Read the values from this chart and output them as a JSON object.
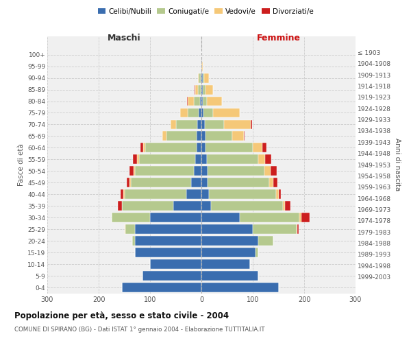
{
  "age_groups": [
    "0-4",
    "5-9",
    "10-14",
    "15-19",
    "20-24",
    "25-29",
    "30-34",
    "35-39",
    "40-44",
    "45-49",
    "50-54",
    "55-59",
    "60-64",
    "65-69",
    "70-74",
    "75-79",
    "80-84",
    "85-89",
    "90-94",
    "95-99",
    "100+"
  ],
  "birth_years": [
    "1999-2003",
    "1994-1998",
    "1989-1993",
    "1984-1988",
    "1979-1983",
    "1974-1978",
    "1969-1973",
    "1964-1968",
    "1959-1963",
    "1954-1958",
    "1949-1953",
    "1944-1948",
    "1939-1943",
    "1934-1938",
    "1929-1933",
    "1924-1928",
    "1919-1923",
    "1914-1918",
    "1909-1913",
    "1904-1908",
    "≤ 1903"
  ],
  "males": {
    "celibi": [
      155,
      115,
      100,
      130,
      130,
      130,
      100,
      55,
      30,
      20,
      15,
      12,
      10,
      10,
      8,
      5,
      3,
      2,
      2,
      0,
      0
    ],
    "coniugati": [
      0,
      0,
      0,
      0,
      5,
      18,
      75,
      100,
      120,
      118,
      115,
      110,
      100,
      58,
      42,
      22,
      12,
      5,
      3,
      0,
      0
    ],
    "vedovi": [
      0,
      0,
      0,
      0,
      0,
      2,
      0,
      0,
      2,
      2,
      2,
      3,
      4,
      8,
      10,
      14,
      12,
      5,
      2,
      0,
      0
    ],
    "divorziati": [
      0,
      0,
      0,
      0,
      0,
      0,
      0,
      8,
      5,
      5,
      8,
      8,
      5,
      0,
      0,
      0,
      1,
      1,
      0,
      0,
      0
    ]
  },
  "females": {
    "nubili": [
      150,
      110,
      95,
      105,
      110,
      100,
      75,
      18,
      15,
      12,
      12,
      10,
      8,
      8,
      6,
      4,
      2,
      3,
      2,
      0,
      0
    ],
    "coniugate": [
      0,
      0,
      0,
      5,
      30,
      85,
      115,
      140,
      130,
      120,
      110,
      100,
      92,
      52,
      38,
      18,
      8,
      5,
      3,
      0,
      0
    ],
    "vedove": [
      0,
      0,
      0,
      0,
      0,
      2,
      5,
      5,
      5,
      8,
      12,
      14,
      18,
      22,
      52,
      52,
      30,
      15,
      10,
      2,
      0
    ],
    "divorziate": [
      0,
      0,
      0,
      0,
      0,
      2,
      15,
      10,
      5,
      8,
      12,
      12,
      8,
      2,
      2,
      0,
      0,
      0,
      0,
      0,
      0
    ]
  },
  "color_celibi": "#3A6DAF",
  "color_coniugati": "#B5C98E",
  "color_vedovi": "#F5C878",
  "color_divorziati": "#CC1E1E",
  "xlim": 300,
  "title": "Popolazione per età, sesso e stato civile - 2004",
  "subtitle": "COMUNE DI SPIRANO (BG) - Dati ISTAT 1° gennaio 2004 - Elaborazione TUTTITALIA.IT",
  "ylabel_left": "Fasce di età",
  "ylabel_right": "Anni di nascita",
  "xlabel_left": "Maschi",
  "xlabel_right": "Femmine",
  "bg_color": "#FFFFFF",
  "plot_bg": "#F0F0F0"
}
